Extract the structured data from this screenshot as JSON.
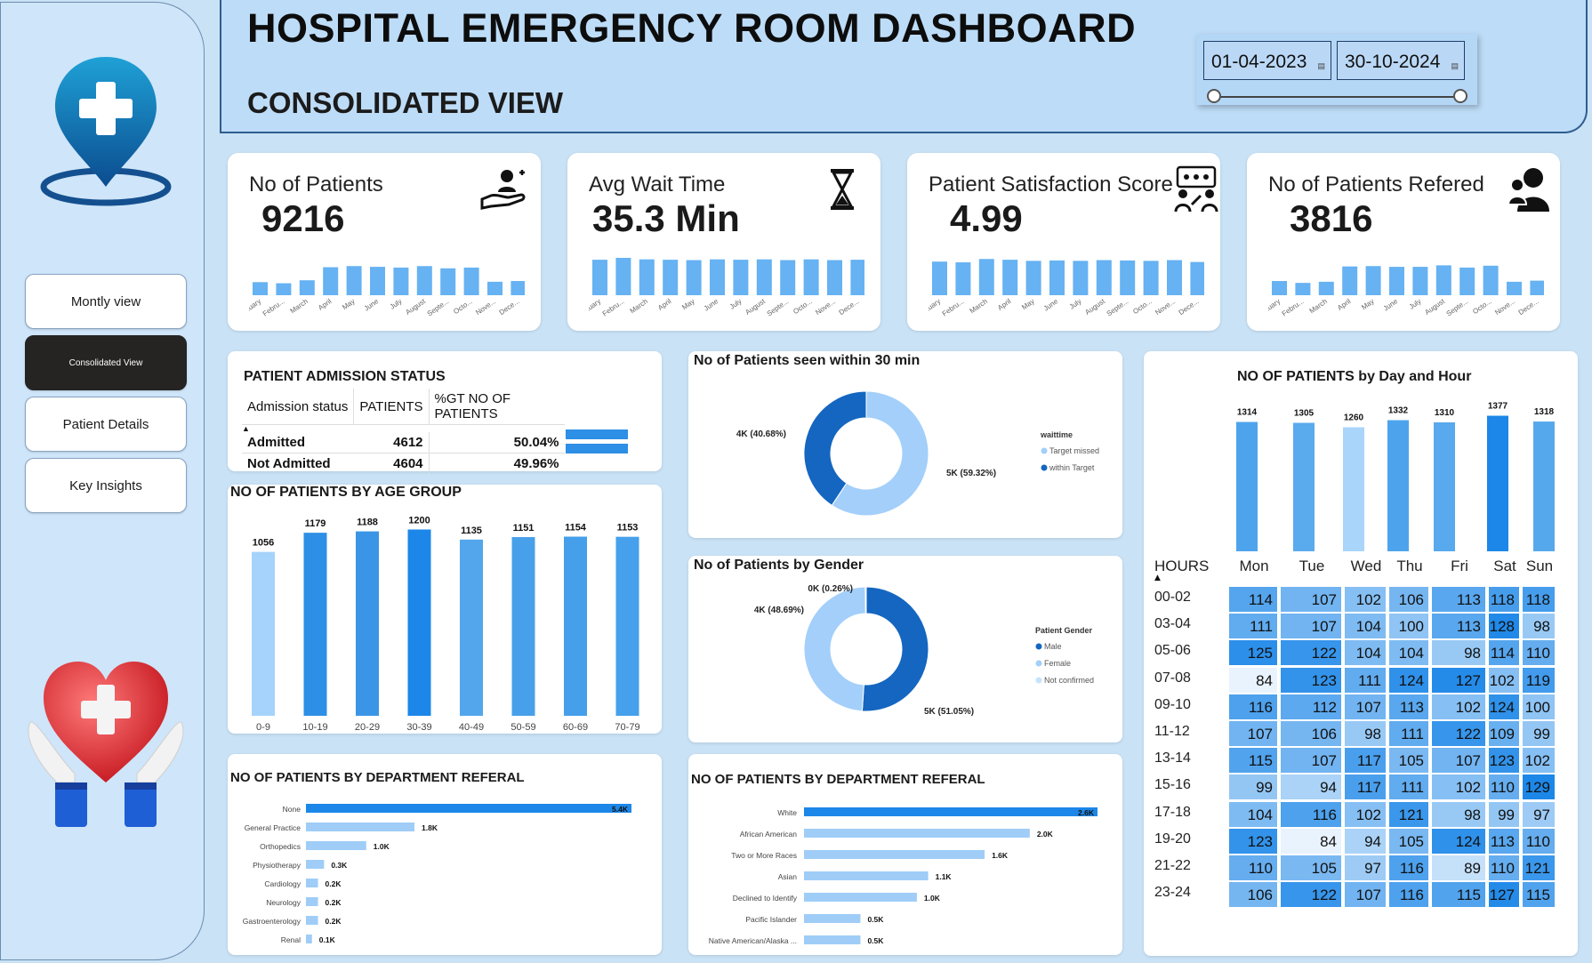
{
  "header": {
    "title": "HOSPITAL EMERGENCY ROOM DASHBOARD",
    "subtitle": "CONSOLIDATED VIEW"
  },
  "date_range": {
    "start": "01-04-2023",
    "end": "30-10-2024"
  },
  "nav": {
    "items": [
      {
        "label": "Montly view",
        "active": false
      },
      {
        "label": "Consolidated View",
        "active": true
      },
      {
        "label": "Patient Details",
        "active": false
      },
      {
        "label": "Key Insights",
        "active": false
      }
    ]
  },
  "kpis": [
    {
      "label": "No of Patients",
      "value": "9216",
      "icon": "patient-care-icon",
      "trend": [
        0.35,
        0.32,
        0.4,
        0.75,
        0.78,
        0.76,
        0.74,
        0.78,
        0.72,
        0.74,
        0.36,
        0.38
      ]
    },
    {
      "label": "Avg Wait Time",
      "value": "35.3 Min",
      "icon": "hourglass-icon",
      "trend": [
        0.95,
        1,
        0.96,
        0.95,
        0.94,
        0.96,
        0.95,
        0.96,
        0.94,
        0.96,
        0.94,
        0.95
      ]
    },
    {
      "label": "Patient Satisfaction Score",
      "value": "4.99",
      "icon": "feedback-icon",
      "trend": [
        0.9,
        0.88,
        0.97,
        0.95,
        0.92,
        0.93,
        0.92,
        0.94,
        0.93,
        0.92,
        0.94,
        0.89
      ]
    },
    {
      "label": "No of Patients Refered",
      "value": "3816",
      "icon": "referral-icon",
      "trend": [
        0.38,
        0.33,
        0.36,
        0.77,
        0.78,
        0.76,
        0.76,
        0.8,
        0.74,
        0.79,
        0.36,
        0.39
      ]
    }
  ],
  "months": [
    "January",
    "Febru...",
    "March",
    "April",
    "May",
    "June",
    "July",
    "August",
    "Septe...",
    "Octo...",
    "Nove...",
    "Dece..."
  ],
  "admission": {
    "title": "PATIENT ADMISSION STATUS",
    "headers": [
      "Admission status",
      "PATIENTS",
      "%GT NO OF PATIENTS"
    ],
    "rows": [
      {
        "status": "Admitted",
        "patients": "4612",
        "pct": "50.04%",
        "frac": 0.5004
      },
      {
        "status": "Not Admitted",
        "patients": "4604",
        "pct": "49.96%",
        "frac": 0.4996
      }
    ]
  },
  "chart_data": [
    {
      "type": "bar",
      "title": "NO OF PATIENTS BY AGE GROUP",
      "categories": [
        "0-9",
        "10-19",
        "20-29",
        "30-39",
        "40-49",
        "50-59",
        "60-69",
        "70-79"
      ],
      "values": [
        1056,
        1179,
        1188,
        1200,
        1135,
        1151,
        1154,
        1153
      ],
      "colors": [
        "#a6d3fb",
        "#2d8fe5",
        "#3b95e6",
        "#1c87e8",
        "#53a6ec",
        "#48a0ea",
        "#459fea",
        "#46a0eb"
      ]
    },
    {
      "type": "pie",
      "title": "No of Patients seen within 30 min",
      "legend_title": "waittime",
      "slices": [
        {
          "name": "Target missed",
          "value": 59.32,
          "label": "5K (59.32%)",
          "color": "#a3cffa"
        },
        {
          "name": "within Target",
          "value": 40.68,
          "label": "4K (40.68%)",
          "color": "#1466c0"
        }
      ]
    },
    {
      "type": "pie",
      "title": "No of Patients by Gender",
      "legend_title": "Patient Gender",
      "slices": [
        {
          "name": "Male",
          "value": 51.05,
          "label": "5K (51.05%)",
          "color": "#1466c0"
        },
        {
          "name": "Female",
          "value": 48.69,
          "label": "4K (48.69%)",
          "color": "#a3cffa"
        },
        {
          "name": "Not confirmed",
          "value": 0.26,
          "label": "0K (0.26%)",
          "color": "#c6e3fc"
        }
      ]
    },
    {
      "type": "bar",
      "orientation": "horizontal",
      "title": "NO OF PATIENTS BY DEPARTMENT REFERAL",
      "categories": [
        "None",
        "General Practice",
        "Orthopedics",
        "Physiotherapy",
        "Cardiology",
        "Neurology",
        "Gastroenterology",
        "Renal"
      ],
      "values": [
        5.4,
        1.8,
        1.0,
        0.3,
        0.2,
        0.2,
        0.2,
        0.1
      ],
      "labels": [
        "5.4K",
        "1.8K",
        "1.0K",
        "0.3K",
        "0.2K",
        "0.2K",
        "0.2K",
        "0.1K"
      ]
    },
    {
      "type": "bar",
      "orientation": "horizontal",
      "title": "NO OF PATIENTS BY DEPARTMENT REFERAL",
      "categories": [
        "White",
        "African American",
        "Two or More Races",
        "Asian",
        "Declined to Identify",
        "Pacific Islander",
        "Native American/Alaska ..."
      ],
      "values": [
        2.6,
        2.0,
        1.6,
        1.1,
        1.0,
        0.5,
        0.5
      ],
      "labels": [
        "2.6K",
        "2.0K",
        "1.6K",
        "1.1K",
        "1.0K",
        "0.5K",
        "0.5K"
      ]
    },
    {
      "type": "bar",
      "title": "NO OF PATIENTS by Day and Hour",
      "categories": [
        "Mon",
        "Tue",
        "Wed",
        "Thu",
        "Fri",
        "Sat",
        "Sun"
      ],
      "values": [
        1314,
        1305,
        1260,
        1332,
        1310,
        1377,
        1318
      ]
    },
    {
      "type": "heatmap",
      "row_header": "HOURS",
      "rows": [
        "00-02",
        "03-04",
        "05-06",
        "07-08",
        "09-10",
        "11-12",
        "13-14",
        "15-16",
        "17-18",
        "19-20",
        "21-22",
        "23-24"
      ],
      "columns": [
        "Mon",
        "Tue",
        "Wed",
        "Thu",
        "Fri",
        "Sat",
        "Sun"
      ],
      "values": [
        [
          114,
          107,
          102,
          106,
          113,
          118,
          118
        ],
        [
          111,
          107,
          104,
          100,
          113,
          128,
          98
        ],
        [
          125,
          122,
          104,
          104,
          98,
          114,
          110
        ],
        [
          84,
          123,
          111,
          124,
          127,
          102,
          119
        ],
        [
          116,
          112,
          107,
          113,
          102,
          124,
          100
        ],
        [
          107,
          106,
          98,
          111,
          122,
          109,
          99
        ],
        [
          115,
          107,
          117,
          105,
          107,
          123,
          102
        ],
        [
          99,
          94,
          117,
          111,
          102,
          110,
          129
        ],
        [
          104,
          116,
          102,
          121,
          98,
          99,
          97
        ],
        [
          123,
          84,
          94,
          105,
          124,
          113,
          110
        ],
        [
          110,
          105,
          97,
          116,
          89,
          110,
          121
        ],
        [
          106,
          122,
          107,
          116,
          115,
          127,
          115
        ]
      ]
    }
  ]
}
